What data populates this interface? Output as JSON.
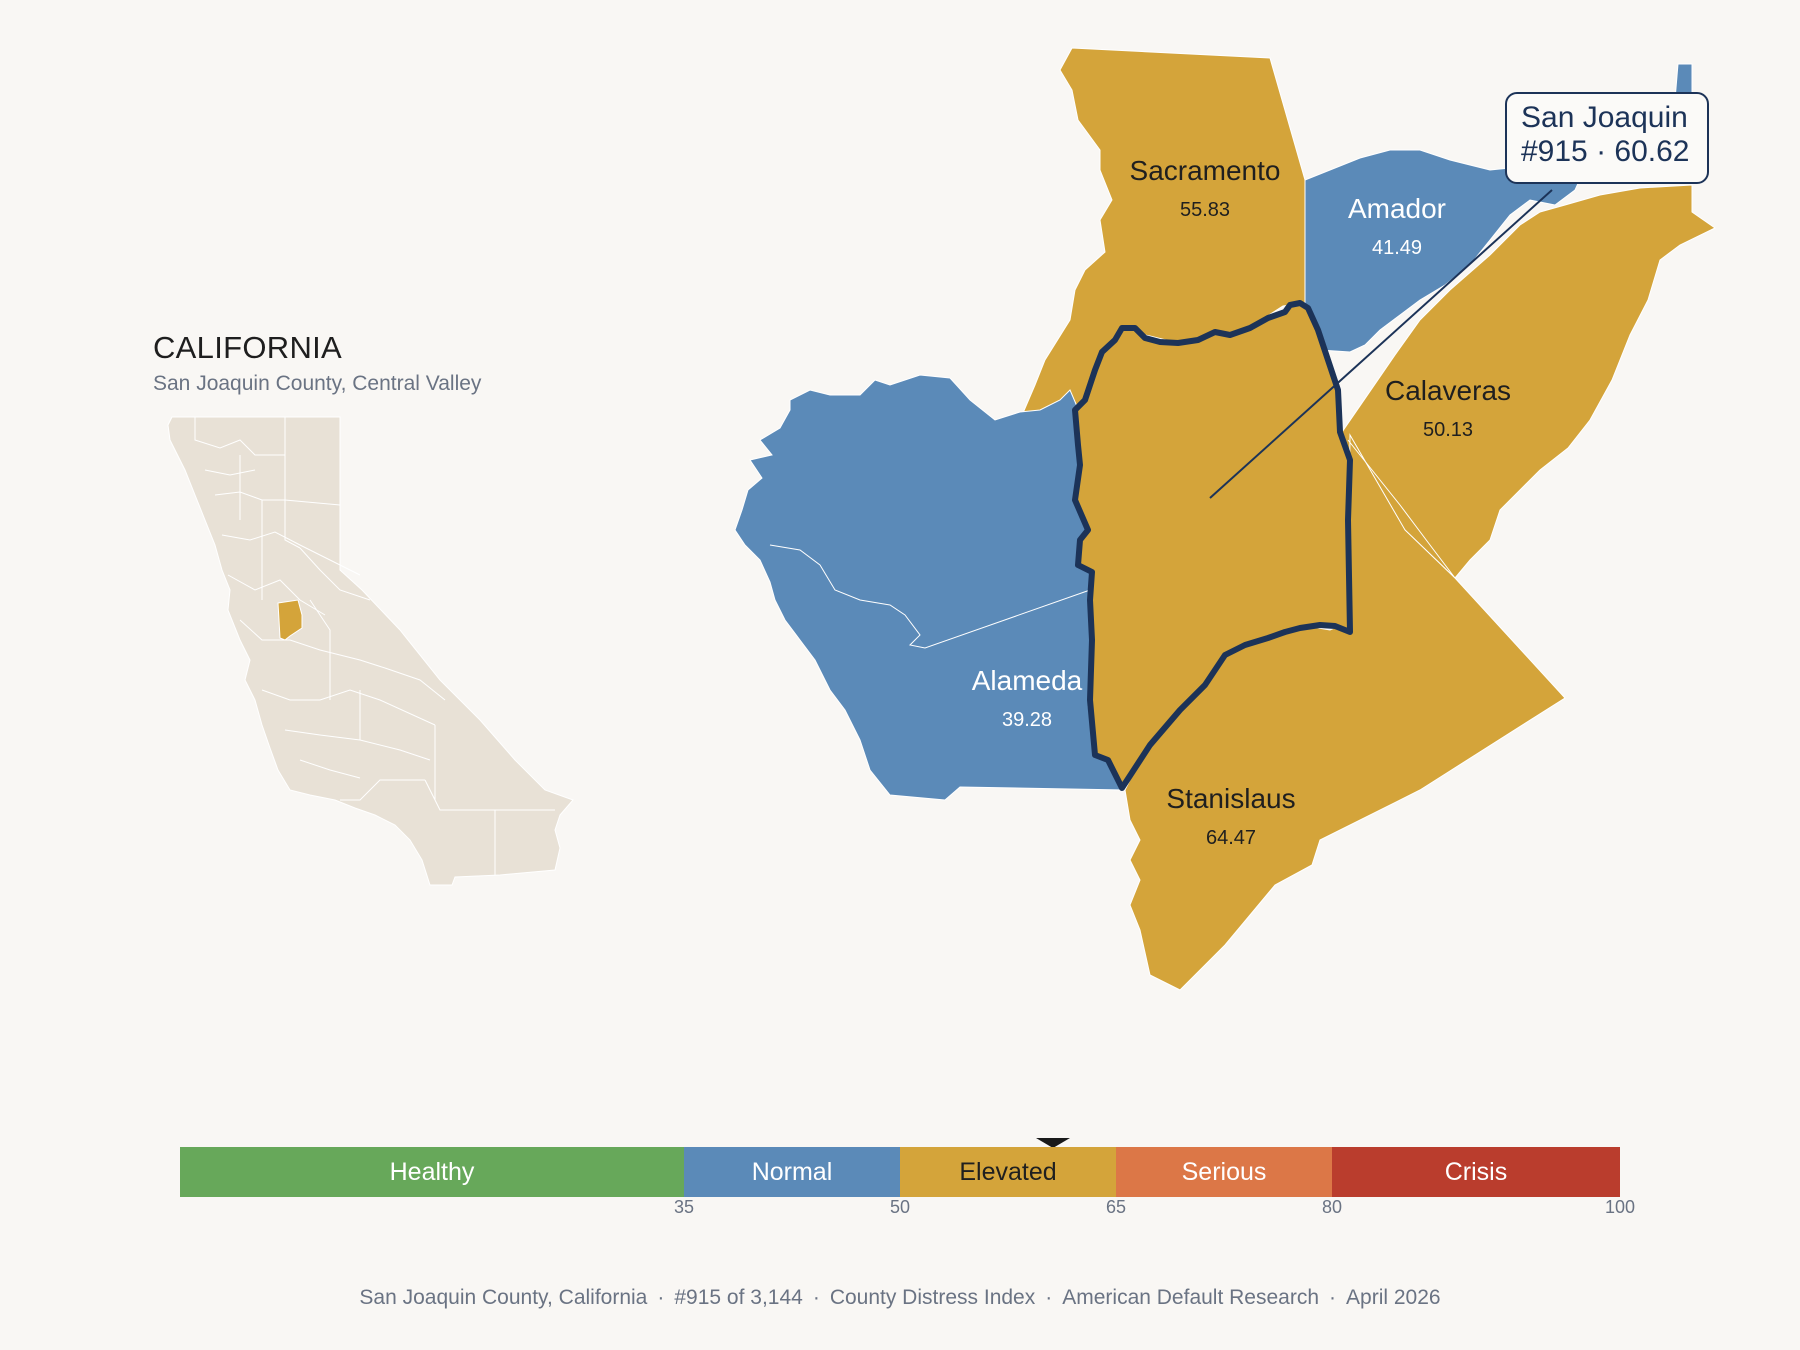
{
  "state": {
    "title": "CALIFORNIA",
    "subtitle": "San Joaquin County, Central Valley"
  },
  "colors": {
    "background": "#f9f7f4",
    "elevated": "#d4a43a",
    "normal": "#5b8ab8",
    "healthy": "#67a85a",
    "serious": "#dc7747",
    "crisis": "#ba3d2d",
    "outline": "#1c3358",
    "inset_land": "#e8e1d6"
  },
  "counties": [
    {
      "name": "Sacramento",
      "value": "55.83",
      "tier": "Elevated"
    },
    {
      "name": "Amador",
      "value": "41.49",
      "tier": "Normal"
    },
    {
      "name": "Calaveras",
      "value": "50.13",
      "tier": "Elevated"
    },
    {
      "name": "Alameda",
      "value": "39.28",
      "tier": "Normal"
    },
    {
      "name": "Stanislaus",
      "value": "64.47",
      "tier": "Elevated"
    }
  ],
  "focus": {
    "name": "San Joaquin",
    "rank_value": "#915 · 60.62",
    "rank": 915,
    "value": 60.62,
    "tier": "Elevated"
  },
  "legend": {
    "segments": [
      {
        "label": "Healthy",
        "from": 0,
        "to": 35,
        "color": "#67a85a",
        "text_color": "#ffffff"
      },
      {
        "label": "Normal",
        "from": 35,
        "to": 50,
        "color": "#5b8ab8",
        "text_color": "#ffffff"
      },
      {
        "label": "Elevated",
        "from": 50,
        "to": 65,
        "color": "#d4a43a",
        "text_color": "#1f1f1f"
      },
      {
        "label": "Serious",
        "from": 65,
        "to": 80,
        "color": "#dc7747",
        "text_color": "#ffffff"
      },
      {
        "label": "Crisis",
        "from": 80,
        "to": 100,
        "color": "#ba3d2d",
        "text_color": "#ffffff"
      }
    ],
    "ticks": [
      "35",
      "50",
      "65",
      "80",
      "100"
    ],
    "marker_value": 60.62
  },
  "footer": {
    "items": [
      "San Joaquin County, California",
      "#915 of 3,144",
      "County Distress Index",
      "American Default Research",
      "April 2026"
    ]
  }
}
